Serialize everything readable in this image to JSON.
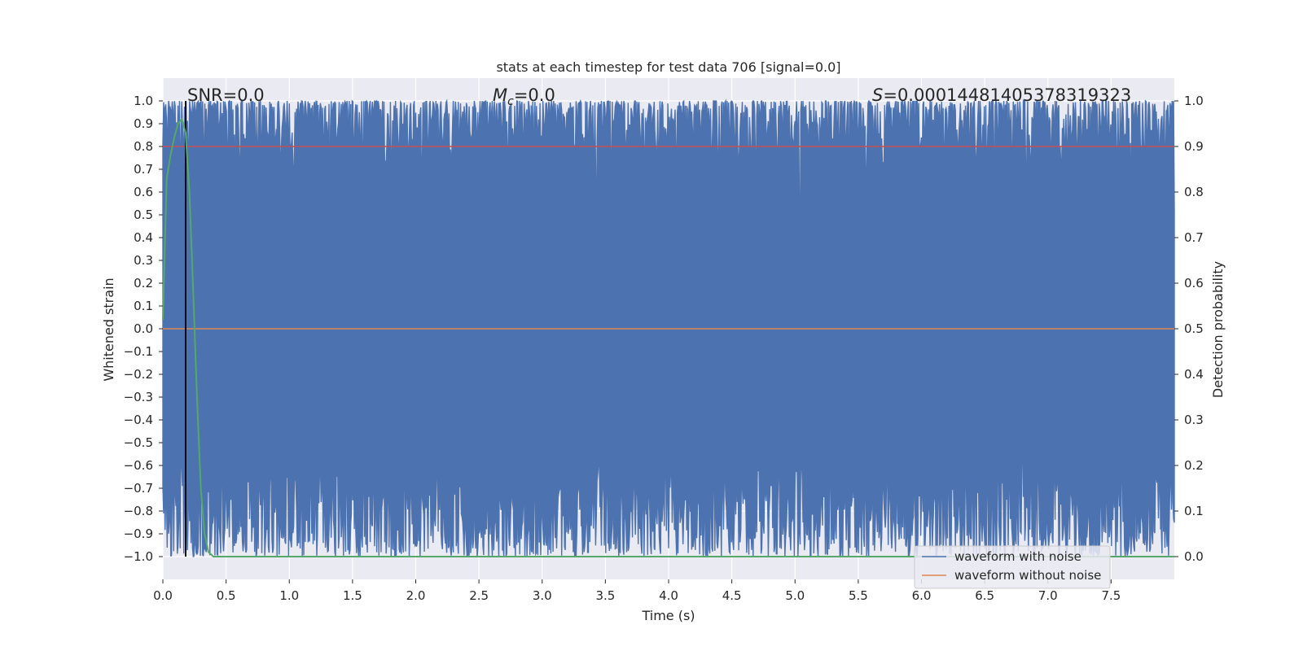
{
  "chart_data": {
    "type": "line",
    "title": "stats at each timestep for test data 706 [signal=0.0]",
    "xlabel": "Time (s)",
    "ylabel": "Whitened strain",
    "ylabel_right": "Detection probability",
    "xlim": [
      0.0,
      8.0
    ],
    "ylim": [
      -1.1,
      1.1
    ],
    "ylim_right": [
      -0.05,
      1.05
    ],
    "x_ticks": [
      "0.0",
      "0.5",
      "1.0",
      "1.5",
      "2.0",
      "2.5",
      "3.0",
      "3.5",
      "4.0",
      "4.5",
      "5.0",
      "5.5",
      "6.0",
      "6.5",
      "7.0",
      "7.5"
    ],
    "y_ticks": [
      "1.0",
      "0.9",
      "0.8",
      "0.7",
      "0.6",
      "0.5",
      "0.4",
      "0.3",
      "0.2",
      "0.1",
      "0.0",
      "−0.1",
      "−0.2",
      "−0.3",
      "−0.4",
      "−0.5",
      "−0.6",
      "−0.7",
      "−0.8",
      "−0.9",
      "−1.0"
    ],
    "y_ticks_right": [
      "1.0",
      "0.9",
      "0.8",
      "0.7",
      "0.6",
      "0.5",
      "0.4",
      "0.3",
      "0.2",
      "0.1",
      "0.0"
    ],
    "grid": true,
    "legend_placement": "lower-right",
    "annotations": {
      "snr": "SNR=0.0",
      "mc_symbol": "M",
      "mc_sub": "c",
      "mc_value": "=0.0",
      "s_symbol": "S",
      "s_value": "=0.00014481405378319323"
    },
    "series": [
      {
        "name": "waveform with noise",
        "color": "#4c72b0",
        "description": "dense noise spanning approximately -1.0 to 1.0 across 0-8 s"
      },
      {
        "name": "waveform without noise",
        "color": "#dd8452",
        "values_constant": 0.0
      },
      {
        "color": "#55a868",
        "axis": "right",
        "x": [
          0.0,
          0.03,
          0.06,
          0.09,
          0.12,
          0.15,
          0.18,
          0.21,
          0.24,
          0.27,
          0.3,
          0.33,
          0.36,
          0.4,
          8.0
        ],
        "y": [
          0.52,
          0.83,
          0.88,
          0.92,
          0.95,
          0.96,
          0.93,
          0.8,
          0.58,
          0.35,
          0.15,
          0.05,
          0.01,
          0.0,
          0.0
        ]
      }
    ],
    "threshold_right": {
      "value": 0.9,
      "color": "#c44e52"
    },
    "marker_line": {
      "x": 0.18,
      "color": "#000000"
    }
  }
}
